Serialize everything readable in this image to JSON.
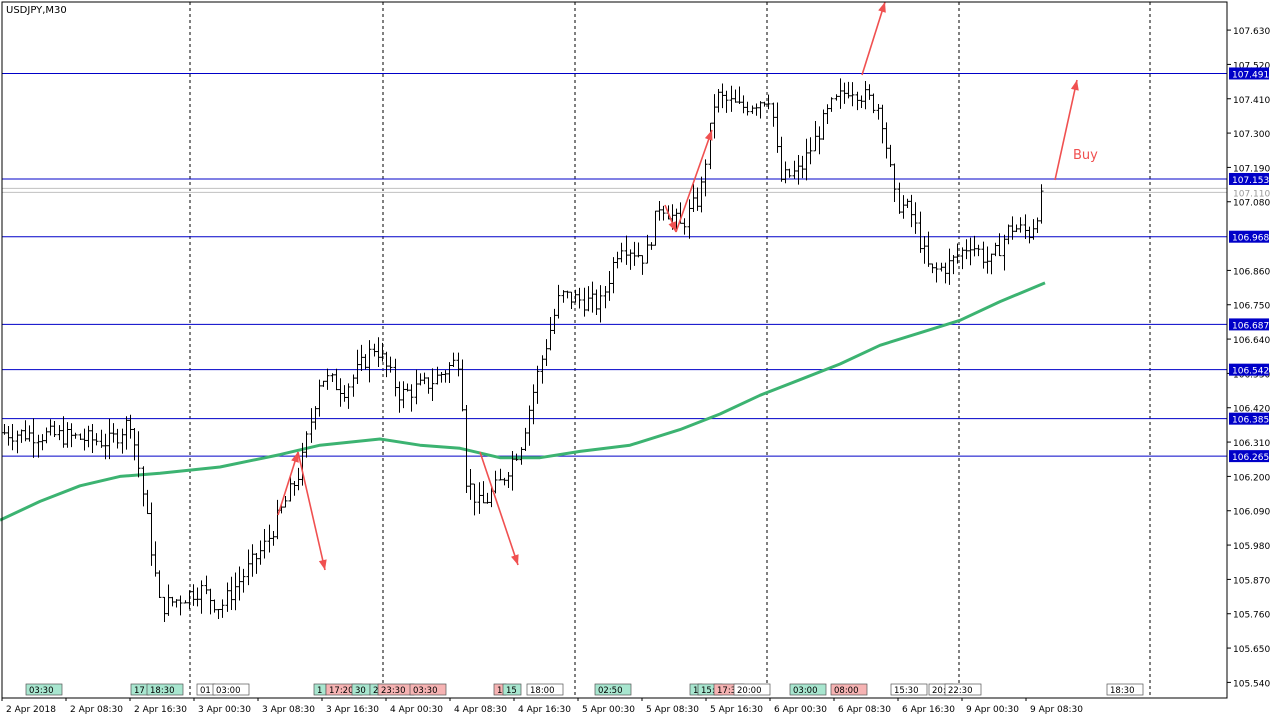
{
  "symbol": "USDJPY,M30",
  "chart_data": {
    "type": "ohlc",
    "title": "USDJPY,M30",
    "ylim": [
      105.49,
      107.72
    ],
    "y_ticks": [
      "107.630",
      "107.520",
      "107.410",
      "107.300",
      "107.190",
      "107.080",
      "106.860",
      "106.750",
      "106.640",
      "106.530",
      "106.420",
      "106.310",
      "106.200",
      "106.090",
      "105.980",
      "105.870",
      "105.760",
      "105.650",
      "105.540"
    ],
    "x_ticks": [
      "2 Apr 2018",
      "2 Apr 08:30",
      "2 Apr 16:30",
      "3 Apr 00:30",
      "3 Apr 08:30",
      "3 Apr 16:30",
      "4 Apr 00:30",
      "4 Apr 08:30",
      "4 Apr 16:30",
      "5 Apr 00:30",
      "5 Apr 08:30",
      "5 Apr 16:30",
      "6 Apr 00:30",
      "6 Apr 08:30",
      "6 Apr 16:30",
      "9 Apr 00:30",
      "9 Apr 08:30"
    ],
    "level_lines": [
      {
        "value": 107.491,
        "label": "107.491"
      },
      {
        "value": 107.153,
        "label": "107.153"
      },
      {
        "value": 106.968,
        "label": "106.968"
      },
      {
        "value": 106.687,
        "label": "106.687"
      },
      {
        "value": 106.542,
        "label": "106.542"
      },
      {
        "value": 106.385,
        "label": "106.385"
      },
      {
        "value": 106.265,
        "label": "106.265"
      }
    ],
    "bid_line": {
      "value": 107.11,
      "label": "107.110"
    },
    "moving_average": [
      [
        0,
        106.06
      ],
      [
        40,
        106.12
      ],
      [
        80,
        106.17
      ],
      [
        120,
        106.2
      ],
      [
        160,
        106.21
      ],
      [
        220,
        106.23
      ],
      [
        280,
        106.27
      ],
      [
        320,
        106.3
      ],
      [
        380,
        106.32
      ],
      [
        420,
        106.3
      ],
      [
        460,
        106.29
      ],
      [
        500,
        106.26
      ],
      [
        540,
        106.26
      ],
      [
        580,
        106.28
      ],
      [
        630,
        106.3
      ],
      [
        680,
        106.35
      ],
      [
        720,
        106.4
      ],
      [
        760,
        106.46
      ],
      [
        800,
        106.51
      ],
      [
        840,
        106.56
      ],
      [
        880,
        106.62
      ],
      [
        920,
        106.66
      ],
      [
        960,
        106.7
      ],
      [
        1000,
        106.76
      ],
      [
        1045,
        106.82
      ]
    ],
    "annotation_label": "Buy",
    "news_markers": [
      {
        "label": "03:30",
        "color": "#a8e6cf"
      },
      {
        "label": "17",
        "color": "#a8e6cf"
      },
      {
        "label": "18:30",
        "color": "#a8e6cf"
      },
      {
        "label": "01",
        "color": "#ffffff"
      },
      {
        "label": "03:00",
        "color": "#ffffff"
      },
      {
        "label": "1",
        "color": "#a8e6cf"
      },
      {
        "label": "17:20",
        "color": "#f6b3b3"
      },
      {
        "label": "30",
        "color": "#a8e6cf"
      },
      {
        "label": "2",
        "color": "#a8e6cf"
      },
      {
        "label": "23:30",
        "color": "#f6b3b3"
      },
      {
        "label": "03:30",
        "color": "#f6b3b3"
      },
      {
        "label": "1",
        "color": "#f6b3b3"
      },
      {
        "label": "15",
        "color": "#a8e6cf"
      },
      {
        "label": "18:00",
        "color": "#ffffff"
      },
      {
        "label": "02:50",
        "color": "#a8e6cf"
      },
      {
        "label": "1",
        "color": "#a8e6cf"
      },
      {
        "label": "15:",
        "color": "#a8e6cf"
      },
      {
        "label": "17:3",
        "color": "#f6b3b3"
      },
      {
        "label": "20:00",
        "color": "#ffffff"
      },
      {
        "label": "03:00",
        "color": "#a8e6cf"
      },
      {
        "label": "08:00",
        "color": "#f6b3b3"
      },
      {
        "label": "15:30",
        "color": "#ffffff"
      },
      {
        "label": "20:",
        "color": "#ffffff"
      },
      {
        "label": "22:30",
        "color": "#ffffff"
      },
      {
        "label": "18:30",
        "color": "#ffffff"
      }
    ]
  },
  "colors": {
    "background": "#ffffff",
    "bars": "#000000",
    "level_line": "#0000c8",
    "level_label_bg": "#0000c8",
    "level_label_text": "#ffffff",
    "moving_average": "#3cb371",
    "arrows": "#f05050",
    "bid_line": "#c0c0c0",
    "grid": "#000000"
  }
}
